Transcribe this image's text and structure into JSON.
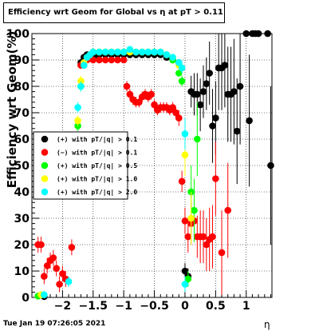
{
  "footer": {
    "timestamp": "Tue Jan 19 07:26:05 2021"
  },
  "chart_data": {
    "type": "scatter",
    "title": "Efficiency wrt Geom for Global vs   η at pT > 0.11",
    "xlabel": "η",
    "ylabel": "Efficiency wrt Geom(%)",
    "xlim": [
      -2.5,
      1.42
    ],
    "ylim": [
      0,
      100
    ],
    "xticks": [
      -2,
      -1.5,
      -1,
      -0.5,
      0,
      0.5,
      1
    ],
    "xtick_labels": [
      "−2",
      "−1.5",
      "−1",
      "−0.5",
      "0",
      "0.5",
      "1"
    ],
    "yticks": [
      0,
      10,
      20,
      30,
      40,
      50,
      60,
      70,
      80,
      90,
      100
    ],
    "grid": true,
    "legend_position": "left-middle",
    "series": [
      {
        "name": "(+) with pT/|q| > 0.1",
        "color": "#000000",
        "points": [
          [
            -2.3,
            0.3
          ],
          [
            -1.7,
            89
          ],
          [
            -1.65,
            91
          ],
          [
            -1.6,
            92
          ],
          [
            -1.55,
            92
          ],
          [
            -1.5,
            92
          ],
          [
            -1.45,
            92
          ],
          [
            -1.4,
            92
          ],
          [
            -1.3,
            92
          ],
          [
            -1.2,
            92
          ],
          [
            -1.1,
            92
          ],
          [
            -1.0,
            92
          ],
          [
            -0.9,
            92
          ],
          [
            -0.8,
            92
          ],
          [
            -0.7,
            92
          ],
          [
            -0.6,
            92
          ],
          [
            -0.5,
            92
          ],
          [
            -0.4,
            92
          ],
          [
            -0.3,
            91
          ],
          [
            -0.2,
            90
          ],
          [
            -0.1,
            89
          ],
          [
            0.0,
            10
          ],
          [
            0.05,
            8
          ],
          [
            0.1,
            78
          ],
          [
            0.15,
            77
          ],
          [
            0.2,
            77
          ],
          [
            0.25,
            73
          ],
          [
            0.3,
            78
          ],
          [
            0.35,
            81
          ],
          [
            0.4,
            85
          ],
          [
            0.45,
            65
          ],
          [
            0.5,
            68
          ],
          [
            0.55,
            87
          ],
          [
            0.6,
            87
          ],
          [
            0.65,
            88
          ],
          [
            0.7,
            77
          ],
          [
            0.75,
            77
          ],
          [
            0.8,
            78
          ],
          [
            0.85,
            63
          ],
          [
            0.9,
            80
          ],
          [
            1.0,
            100
          ],
          [
            1.05,
            67
          ],
          [
            1.1,
            100
          ],
          [
            1.15,
            100
          ],
          [
            1.2,
            100
          ],
          [
            1.35,
            100
          ],
          [
            1.4,
            50
          ]
        ],
        "errors": [
          2,
          1,
          1,
          1,
          1,
          1,
          1,
          1,
          1,
          1,
          1,
          1,
          1,
          1,
          1,
          1,
          1,
          1,
          1,
          1,
          1,
          3,
          3,
          6,
          8,
          8,
          10,
          10,
          10,
          12,
          14,
          14,
          16,
          16,
          16,
          18,
          18,
          20,
          20,
          22,
          0,
          25,
          0,
          0,
          0,
          0,
          30
        ]
      },
      {
        "name": "(−) with pT/|q| > 0.1",
        "color": "#ff0000",
        "points": [
          [
            -2.4,
            20
          ],
          [
            -2.35,
            20
          ],
          [
            -2.3,
            8
          ],
          [
            -2.25,
            12
          ],
          [
            -2.2,
            14
          ],
          [
            -2.15,
            15
          ],
          [
            -2.1,
            11
          ],
          [
            -2.05,
            5
          ],
          [
            -2.0,
            9
          ],
          [
            -1.95,
            7
          ],
          [
            -1.85,
            19
          ],
          [
            -1.7,
            88
          ],
          [
            -1.6,
            90
          ],
          [
            -1.5,
            90
          ],
          [
            -1.4,
            90
          ],
          [
            -1.3,
            90
          ],
          [
            -1.2,
            90
          ],
          [
            -1.1,
            90
          ],
          [
            -1.0,
            90
          ],
          [
            -0.95,
            80
          ],
          [
            -0.9,
            77
          ],
          [
            -0.85,
            75
          ],
          [
            -0.8,
            74
          ],
          [
            -0.75,
            74
          ],
          [
            -0.7,
            76
          ],
          [
            -0.65,
            77
          ],
          [
            -0.6,
            76
          ],
          [
            -0.55,
            77
          ],
          [
            -0.5,
            73
          ],
          [
            -0.45,
            71
          ],
          [
            -0.4,
            72
          ],
          [
            -0.35,
            72
          ],
          [
            -0.3,
            72
          ],
          [
            -0.25,
            71
          ],
          [
            -0.2,
            72
          ],
          [
            -0.15,
            70
          ],
          [
            -0.1,
            68
          ],
          [
            -0.05,
            44
          ],
          [
            0.0,
            29
          ],
          [
            0.05,
            23
          ],
          [
            0.1,
            28
          ],
          [
            0.15,
            29
          ],
          [
            0.2,
            23
          ],
          [
            0.25,
            23
          ],
          [
            0.3,
            23
          ],
          [
            0.35,
            20
          ],
          [
            0.4,
            22
          ],
          [
            0.45,
            23
          ],
          [
            0.5,
            45
          ],
          [
            0.6,
            17
          ],
          [
            0.7,
            33
          ]
        ],
        "errors": [
          3,
          3,
          3,
          3,
          3,
          3,
          3,
          3,
          3,
          3,
          3,
          1,
          1,
          1,
          1,
          1,
          1,
          1,
          1,
          2,
          2,
          2,
          2,
          2,
          2,
          2,
          2,
          2,
          2,
          2,
          2,
          2,
          2,
          2,
          2,
          2,
          3,
          4,
          5,
          6,
          8,
          8,
          8,
          10,
          10,
          10,
          12,
          12,
          14,
          16,
          18
        ]
      },
      {
        "name": "(+) with pT/|q| > 0.5",
        "color": "#00ff00",
        "points": [
          [
            -2.4,
            0.5
          ],
          [
            -1.75,
            65
          ],
          [
            -1.7,
            80
          ],
          [
            -1.65,
            88
          ],
          [
            -1.6,
            91
          ],
          [
            -1.55,
            92
          ],
          [
            -1.5,
            93
          ],
          [
            -1.4,
            93
          ],
          [
            -1.3,
            93
          ],
          [
            -1.2,
            93
          ],
          [
            -1.1,
            93
          ],
          [
            -1.0,
            93
          ],
          [
            -0.9,
            93
          ],
          [
            -0.8,
            93
          ],
          [
            -0.7,
            93
          ],
          [
            -0.6,
            93
          ],
          [
            -0.5,
            93
          ],
          [
            -0.4,
            93
          ],
          [
            -0.3,
            92
          ],
          [
            -0.2,
            90
          ],
          [
            -0.1,
            85
          ],
          [
            -0.05,
            82
          ],
          [
            0.05,
            7
          ],
          [
            0.1,
            40
          ],
          [
            0.15,
            33
          ],
          [
            0.2,
            60
          ]
        ],
        "errors": [
          1,
          2,
          2,
          1,
          1,
          1,
          1,
          1,
          1,
          1,
          1,
          1,
          1,
          1,
          1,
          1,
          1,
          1,
          1,
          1,
          1,
          2,
          3,
          10,
          12,
          14
        ]
      },
      {
        "name": "(+) with pT/|q| > 1.0",
        "color": "#ffff00",
        "points": [
          [
            -2.35,
            1
          ],
          [
            -1.75,
            67
          ],
          [
            -1.7,
            82
          ],
          [
            -1.65,
            89
          ],
          [
            -1.6,
            91
          ],
          [
            -1.5,
            93
          ],
          [
            -1.4,
            93
          ],
          [
            -1.3,
            93
          ],
          [
            -1.2,
            93
          ],
          [
            -1.1,
            93
          ],
          [
            -1.0,
            93
          ],
          [
            -0.9,
            93
          ],
          [
            -0.8,
            93
          ],
          [
            -0.7,
            93
          ],
          [
            -0.6,
            93
          ],
          [
            -0.5,
            93
          ],
          [
            -0.4,
            93
          ],
          [
            -0.3,
            92
          ],
          [
            -0.2,
            91
          ],
          [
            -0.1,
            88
          ],
          [
            0.0,
            54
          ],
          [
            0.1,
            30
          ]
        ],
        "errors": [
          1,
          2,
          2,
          1,
          1,
          1,
          1,
          1,
          1,
          1,
          1,
          1,
          1,
          1,
          1,
          1,
          1,
          1,
          1,
          2,
          8,
          10
        ]
      },
      {
        "name": "(+) with pT/|q| > 2.0",
        "color": "#00ffff",
        "points": [
          [
            -2.3,
            1
          ],
          [
            -1.9,
            6
          ],
          [
            -1.75,
            72
          ],
          [
            -1.7,
            80
          ],
          [
            -1.65,
            88
          ],
          [
            -1.6,
            91
          ],
          [
            -1.55,
            92
          ],
          [
            -1.5,
            93
          ],
          [
            -1.4,
            93
          ],
          [
            -1.3,
            93
          ],
          [
            -1.2,
            93
          ],
          [
            -1.1,
            93
          ],
          [
            -1.0,
            93
          ],
          [
            -0.9,
            94
          ],
          [
            -0.8,
            93
          ],
          [
            -0.7,
            93
          ],
          [
            -0.6,
            93
          ],
          [
            -0.5,
            93
          ],
          [
            -0.4,
            93
          ],
          [
            -0.3,
            92
          ],
          [
            -0.2,
            91
          ],
          [
            -0.1,
            89
          ],
          [
            -0.05,
            87
          ],
          [
            0.0,
            62
          ],
          [
            0.0,
            5
          ]
        ],
        "errors": [
          1,
          2,
          2,
          2,
          1,
          1,
          1,
          1,
          1,
          1,
          1,
          1,
          1,
          1,
          1,
          1,
          1,
          1,
          1,
          1,
          1,
          1,
          2,
          6,
          3
        ]
      }
    ]
  }
}
